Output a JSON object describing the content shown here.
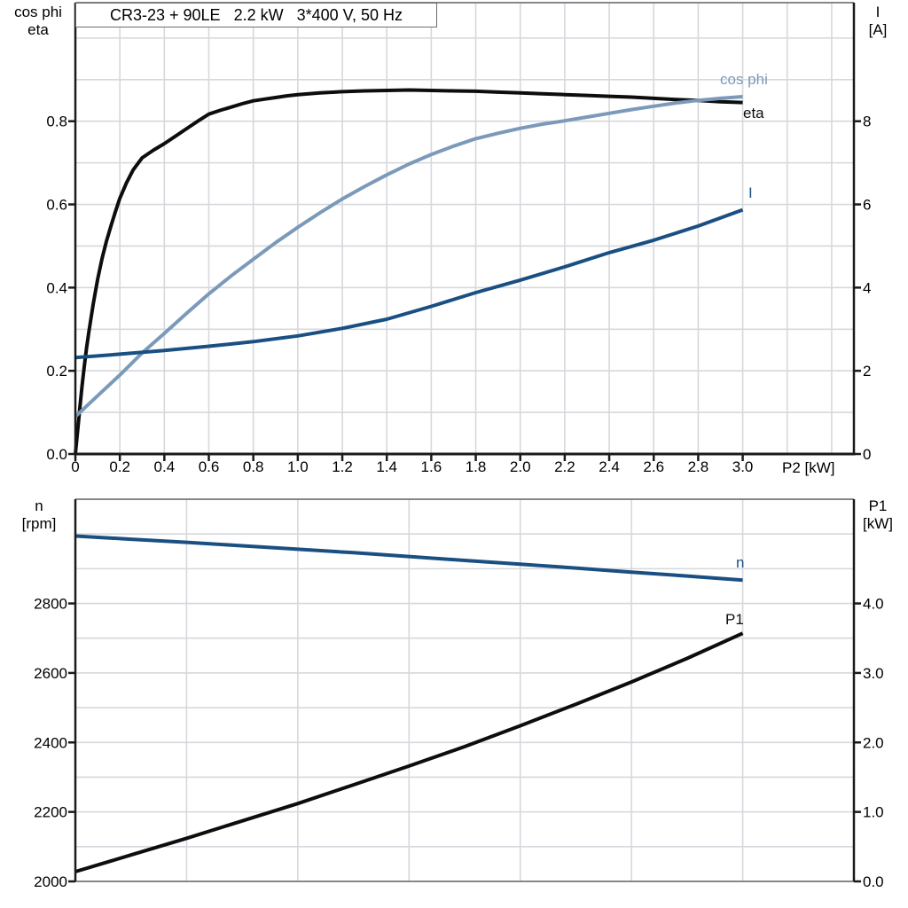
{
  "title_box": {
    "text": "CR3-23 + 90LE   2.2 kW   3*400 V, 50 Hz"
  },
  "colors": {
    "black_curve": "#0d0d0d",
    "dark_blue_curve": "#1a4f82",
    "light_blue_curve": "#7b9aba",
    "grid": "#d5d8dc",
    "frame_gray": "#85888b",
    "axis": "#1a1a1a",
    "text": "#000000"
  },
  "chart_data": [
    {
      "type": "line",
      "title": "CR3-23 + 90LE   2.2 kW   3*400 V, 50 Hz",
      "xlabel": "P2 [kW]",
      "x_range": [
        0,
        3.5
      ],
      "x_tick_labels": [
        "0",
        "0.2",
        "0.4",
        "0.6",
        "0.8",
        "1.0",
        "1.2",
        "1.4",
        "1.6",
        "1.8",
        "2.0",
        "2.2",
        "2.4",
        "2.6",
        "2.8",
        "3.0"
      ],
      "x_tick_values": [
        0,
        0.2,
        0.4,
        0.6,
        0.8,
        1.0,
        1.2,
        1.4,
        1.6,
        1.8,
        2.0,
        2.2,
        2.4,
        2.6,
        2.8,
        3.0
      ],
      "grid": {
        "x_step": 0.2,
        "y_step_left": 0.1,
        "grid_on": true
      },
      "legend_position": "labels-at-curve-ends",
      "left_axis": {
        "title": [
          "cos phi",
          "eta"
        ],
        "range": [
          0,
          1.085
        ],
        "tick_labels": [
          "0.0",
          "0.2",
          "0.4",
          "0.6",
          "0.8"
        ],
        "tick_values": [
          0,
          0.2,
          0.4,
          0.6,
          0.8
        ]
      },
      "right_axis": {
        "title": [
          "I",
          "[A]"
        ],
        "range": [
          0,
          10.85
        ],
        "tick_labels": [
          "0",
          "2",
          "4",
          "6",
          "8"
        ],
        "tick_values": [
          0,
          2,
          4,
          6,
          8
        ]
      },
      "series": [
        {
          "name": "eta",
          "label": "eta",
          "axis": "left",
          "color": "#0d0d0d",
          "points": [
            [
              0,
              0
            ],
            [
              0.01,
              0.055
            ],
            [
              0.02,
              0.11
            ],
            [
              0.03,
              0.163
            ],
            [
              0.04,
              0.21
            ],
            [
              0.05,
              0.253
            ],
            [
              0.06,
              0.292
            ],
            [
              0.08,
              0.36
            ],
            [
              0.1,
              0.42
            ],
            [
              0.12,
              0.47
            ],
            [
              0.14,
              0.512
            ],
            [
              0.16,
              0.548
            ],
            [
              0.18,
              0.583
            ],
            [
              0.2,
              0.615
            ],
            [
              0.23,
              0.652
            ],
            [
              0.26,
              0.683
            ],
            [
              0.3,
              0.712
            ],
            [
              0.35,
              0.73
            ],
            [
              0.4,
              0.746
            ],
            [
              0.45,
              0.764
            ],
            [
              0.5,
              0.782
            ],
            [
              0.55,
              0.8
            ],
            [
              0.6,
              0.817
            ],
            [
              0.65,
              0.826
            ],
            [
              0.7,
              0.834
            ],
            [
              0.75,
              0.842
            ],
            [
              0.8,
              0.849
            ],
            [
              0.85,
              0.853
            ],
            [
              0.9,
              0.857
            ],
            [
              0.95,
              0.861
            ],
            [
              1.0,
              0.864
            ],
            [
              1.1,
              0.868
            ],
            [
              1.2,
              0.871
            ],
            [
              1.3,
              0.873
            ],
            [
              1.4,
              0.874
            ],
            [
              1.5,
              0.875
            ],
            [
              1.6,
              0.874
            ],
            [
              1.7,
              0.873
            ],
            [
              1.8,
              0.872
            ],
            [
              1.9,
              0.87
            ],
            [
              2.0,
              0.868
            ],
            [
              2.1,
              0.866
            ],
            [
              2.2,
              0.864
            ],
            [
              2.3,
              0.862
            ],
            [
              2.4,
              0.86
            ],
            [
              2.5,
              0.858
            ],
            [
              2.6,
              0.855
            ],
            [
              2.7,
              0.852
            ],
            [
              2.8,
              0.85
            ],
            [
              2.9,
              0.847
            ],
            [
              3.0,
              0.845
            ]
          ]
        },
        {
          "name": "cos phi",
          "label": "cos phi",
          "axis": "left",
          "color": "#7b9aba",
          "points": [
            [
              0,
              0.09
            ],
            [
              0.1,
              0.14
            ],
            [
              0.2,
              0.19
            ],
            [
              0.3,
              0.243
            ],
            [
              0.4,
              0.29
            ],
            [
              0.5,
              0.338
            ],
            [
              0.6,
              0.385
            ],
            [
              0.7,
              0.428
            ],
            [
              0.8,
              0.468
            ],
            [
              0.9,
              0.508
            ],
            [
              1.0,
              0.545
            ],
            [
              1.1,
              0.58
            ],
            [
              1.2,
              0.613
            ],
            [
              1.3,
              0.643
            ],
            [
              1.4,
              0.671
            ],
            [
              1.5,
              0.697
            ],
            [
              1.6,
              0.72
            ],
            [
              1.7,
              0.74
            ],
            [
              1.8,
              0.758
            ],
            [
              1.9,
              0.771
            ],
            [
              2.0,
              0.783
            ],
            [
              2.1,
              0.793
            ],
            [
              2.2,
              0.801
            ],
            [
              2.3,
              0.81
            ],
            [
              2.4,
              0.819
            ],
            [
              2.5,
              0.828
            ],
            [
              2.6,
              0.836
            ],
            [
              2.7,
              0.844
            ],
            [
              2.8,
              0.85
            ],
            [
              2.9,
              0.855
            ],
            [
              3.0,
              0.859
            ]
          ]
        },
        {
          "name": "I",
          "label": "I",
          "axis": "right",
          "color": "#1a4f82",
          "points": [
            [
              0,
              2.32
            ],
            [
              0.2,
              2.4
            ],
            [
              0.4,
              2.49
            ],
            [
              0.6,
              2.59
            ],
            [
              0.8,
              2.7
            ],
            [
              1.0,
              2.84
            ],
            [
              1.2,
              3.02
            ],
            [
              1.4,
              3.24
            ],
            [
              1.6,
              3.55
            ],
            [
              1.8,
              3.88
            ],
            [
              2.0,
              4.18
            ],
            [
              2.2,
              4.5
            ],
            [
              2.4,
              4.84
            ],
            [
              2.6,
              5.14
            ],
            [
              2.8,
              5.48
            ],
            [
              3.0,
              5.87
            ]
          ]
        }
      ]
    },
    {
      "type": "line",
      "title": "",
      "xlabel": "",
      "x_range": [
        0,
        3.5
      ],
      "x_tick_labels": [],
      "x_tick_values": [],
      "grid": {
        "x_step": 0.5,
        "y_step_left": 100,
        "grid_on": true
      },
      "legend_position": "labels-at-curve-ends",
      "left_axis": {
        "title": [
          "n",
          "[rpm]"
        ],
        "range": [
          2000,
          3100
        ],
        "tick_labels": [
          "2000",
          "2200",
          "2400",
          "2600",
          "2800"
        ],
        "tick_values": [
          2000,
          2200,
          2400,
          2600,
          2800
        ]
      },
      "right_axis": {
        "title": [
          "P1",
          "[kW]"
        ],
        "range": [
          0,
          5.5
        ],
        "tick_labels": [
          "0.0",
          "1.0",
          "2.0",
          "3.0",
          "4.0"
        ],
        "tick_values": [
          0,
          1,
          2,
          3,
          4
        ]
      },
      "series": [
        {
          "name": "n",
          "label": "n",
          "axis": "left",
          "color": "#1a4f82",
          "points": [
            [
              0,
              2994
            ],
            [
              0.25,
              2985
            ],
            [
              0.5,
              2976
            ],
            [
              0.75,
              2966
            ],
            [
              1.0,
              2956
            ],
            [
              1.25,
              2946
            ],
            [
              1.5,
              2935
            ],
            [
              1.75,
              2924
            ],
            [
              2.0,
              2913
            ],
            [
              2.25,
              2902
            ],
            [
              2.5,
              2890
            ],
            [
              2.75,
              2879
            ],
            [
              3.0,
              2867
            ]
          ]
        },
        {
          "name": "P1",
          "label": "P1",
          "axis": "right",
          "color": "#0d0d0d",
          "points": [
            [
              0,
              0.14
            ],
            [
              0.25,
              0.38
            ],
            [
              0.5,
              0.62
            ],
            [
              0.75,
              0.87
            ],
            [
              1.0,
              1.12
            ],
            [
              1.25,
              1.39
            ],
            [
              1.5,
              1.66
            ],
            [
              1.75,
              1.94
            ],
            [
              2.0,
              2.24
            ],
            [
              2.25,
              2.55
            ],
            [
              2.5,
              2.87
            ],
            [
              2.75,
              3.21
            ],
            [
              3.0,
              3.57
            ]
          ]
        }
      ]
    }
  ]
}
